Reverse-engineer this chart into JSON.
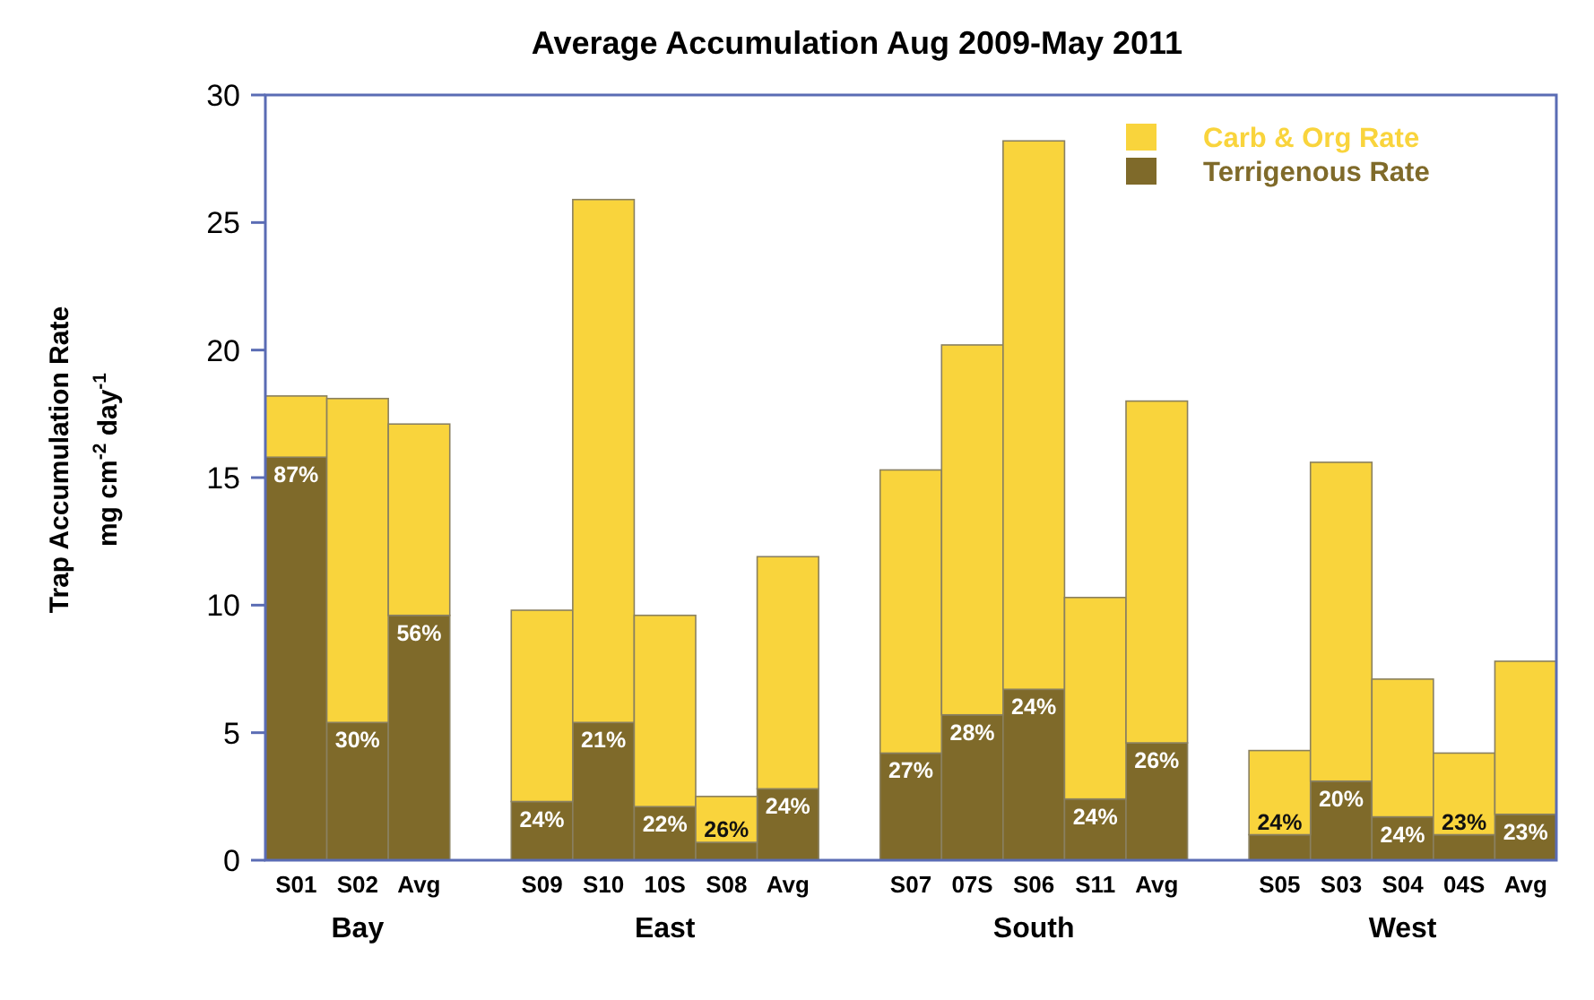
{
  "chart_data": {
    "type": "bar",
    "stacked": true,
    "title": "Average Accumulation Aug 2009-May 2011",
    "ylabel": "Trap Accumulation Rate\nmg cm$^{-2}$ day$^{-1}$",
    "categories": [
      "S01",
      "S02",
      "Avg",
      null,
      "S09",
      "S10",
      "10S",
      "S08",
      "Avg",
      null,
      "S07",
      "07S",
      "S06",
      "S11",
      "Avg",
      null,
      "S05",
      "S03",
      "S04",
      "04S",
      "Avg"
    ],
    "series": [
      {
        "name": "Terrigenous Rate",
        "color": "#7f6a2a",
        "values": [
          15.8,
          5.4,
          9.6,
          null,
          2.3,
          5.4,
          2.1,
          0.7,
          2.8,
          null,
          4.2,
          5.7,
          6.7,
          2.4,
          4.6,
          null,
          1.0,
          3.1,
          1.7,
          1.0,
          1.8
        ]
      },
      {
        "name": "Carb & Org Rate",
        "color": "#f9d43c",
        "values": [
          2.4,
          12.7,
          7.5,
          null,
          7.5,
          20.5,
          7.5,
          1.8,
          9.1,
          null,
          11.1,
          14.5,
          21.5,
          7.9,
          13.4,
          null,
          3.3,
          12.5,
          5.4,
          3.2,
          6.0
        ]
      }
    ],
    "annotations": [
      "Bay",
      "East",
      "South",
      "West",
      {
        "text": "87%",
        "x": "S01",
        "y": 15.8
      },
      {
        "text": "30%",
        "x": "S02",
        "y": 5.4
      },
      {
        "text": "56%",
        "x": "Avg",
        "y": 9.6
      },
      {
        "text": "24%",
        "x": "S09",
        "y": 2.3
      },
      {
        "text": "21%",
        "x": "S10",
        "y": 5.4
      },
      {
        "text": "22%",
        "x": "10S",
        "y": 2.1
      },
      {
        "text": "26%",
        "x": "S08",
        "y": 0.7
      },
      {
        "text": "27%",
        "x": "S07",
        "y": 4.2
      },
      {
        "text": "28%",
        "x": "07S",
        "y": 5.7
      },
      {
        "text": "24%",
        "x": "S06",
        "y": 6.7
      },
      {
        "text": "24%",
        "x": "S11",
        "y": 2.4
      },
      {
        "text": "24%",
        "x": "S05",
        "y": 1.0
      },
      {
        "text": "20%",
        "x": "S03",
        "y": 3.1
      },
      {
        "text": "24%",
        "x": "S04",
        "y": 1.7
      },
      {
        "text": "23%",
        "x": "04S",
        "y": 1.0
      },
      "24%",
      "26%",
      "23%"
    ],
    "ylim": [
      0,
      30
    ],
    "yticks": [
      0,
      5,
      10,
      15,
      20,
      25,
      30
    ],
    "legend": "top right",
    "grid": false
  }
}
